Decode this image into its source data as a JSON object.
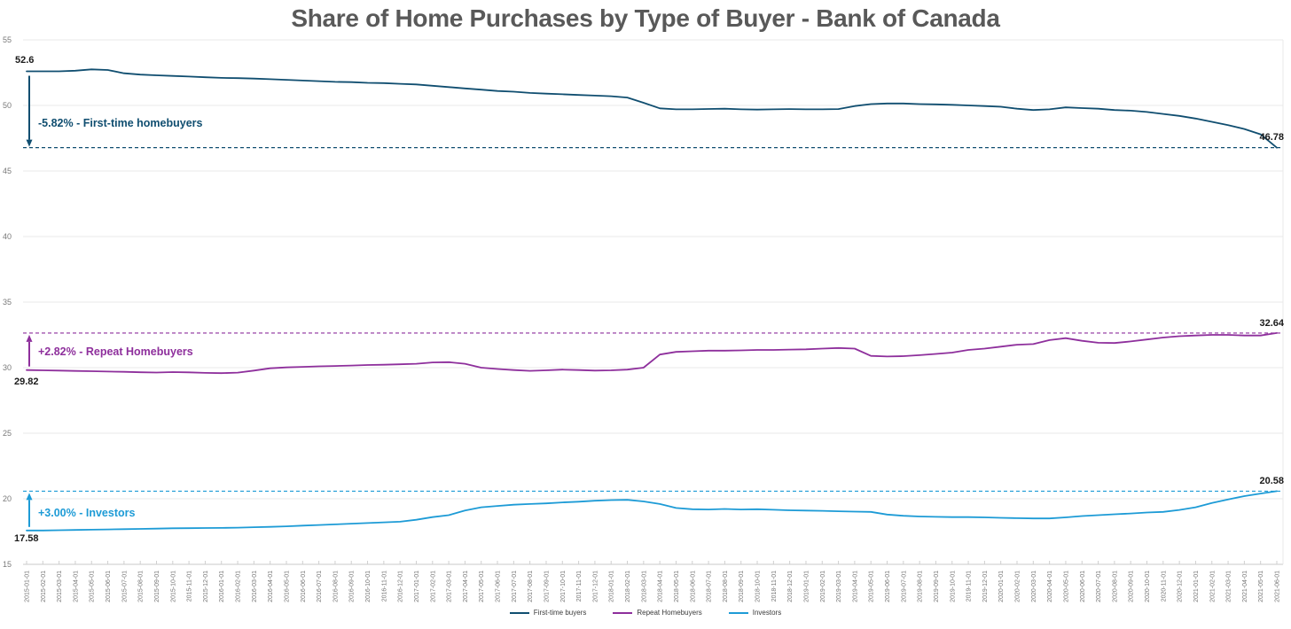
{
  "title": "Share of Home Purchases by Type of Buyer - Bank of Canada",
  "colors": {
    "title_text": "#595959",
    "grid": "#e9e9e9",
    "axis_line": "#c9c9c9",
    "tick_label": "#7a7a7a",
    "value_label": "#1a1a1a",
    "background": "#ffffff",
    "first_time_buyers": "#104e70",
    "repeat_homebuyers": "#8e2f9c",
    "investors": "#1d9bd6"
  },
  "chart_data": {
    "type": "line",
    "title": "Share of Home Purchases by Type of Buyer - Bank of Canada",
    "xlabel": "",
    "ylabel": "",
    "ylim": [
      15,
      55
    ],
    "yticks": [
      15,
      20,
      25,
      30,
      35,
      40,
      45,
      50,
      55
    ],
    "grid": true,
    "legend_position": "bottom",
    "x": [
      "2015-01-01",
      "2015-02-01",
      "2015-03-01",
      "2015-04-01",
      "2015-05-01",
      "2015-06-01",
      "2015-07-01",
      "2015-08-01",
      "2015-09-01",
      "2015-10-01",
      "2015-11-01",
      "2015-12-01",
      "2016-01-01",
      "2016-02-01",
      "2016-03-01",
      "2016-04-01",
      "2016-05-01",
      "2016-06-01",
      "2016-07-01",
      "2016-08-01",
      "2016-09-01",
      "2016-10-01",
      "2016-11-01",
      "2016-12-01",
      "2017-01-01",
      "2017-02-01",
      "2017-03-01",
      "2017-04-01",
      "2017-05-01",
      "2017-06-01",
      "2017-07-01",
      "2017-08-01",
      "2017-09-01",
      "2017-10-01",
      "2017-11-01",
      "2017-12-01",
      "2018-01-01",
      "2018-02-01",
      "2018-03-01",
      "2018-04-01",
      "2018-05-01",
      "2018-06-01",
      "2018-07-01",
      "2018-08-01",
      "2018-09-01",
      "2018-10-01",
      "2018-11-01",
      "2018-12-01",
      "2019-01-01",
      "2019-02-01",
      "2019-03-01",
      "2019-04-01",
      "2019-05-01",
      "2019-06-01",
      "2019-07-01",
      "2019-08-01",
      "2019-09-01",
      "2019-10-01",
      "2019-11-01",
      "2019-12-01",
      "2020-01-01",
      "2020-02-01",
      "2020-03-01",
      "2020-04-01",
      "2020-05-01",
      "2020-06-01",
      "2020-07-01",
      "2020-08-01",
      "2020-09-01",
      "2020-10-01",
      "2020-11-01",
      "2020-12-01",
      "2021-01-01",
      "2021-02-01",
      "2021-03-01",
      "2021-04-01",
      "2021-05-01",
      "2021-06-01"
    ],
    "series": [
      {
        "name": "First-time buyers",
        "color": "#104e70",
        "annotation": "-5.82% - First-time homebuyers",
        "start_label": "52.6",
        "end_label": "46.78",
        "ref_value": 46.78,
        "arrow_direction": "down",
        "values": [
          52.6,
          52.6,
          52.6,
          52.65,
          52.75,
          52.7,
          52.45,
          52.35,
          52.3,
          52.25,
          52.2,
          52.15,
          52.1,
          52.08,
          52.05,
          52.0,
          51.95,
          51.9,
          51.85,
          51.8,
          51.78,
          51.72,
          51.7,
          51.65,
          51.6,
          51.5,
          51.4,
          51.3,
          51.2,
          51.1,
          51.05,
          50.95,
          50.9,
          50.85,
          50.8,
          50.75,
          50.7,
          50.6,
          50.2,
          49.78,
          49.7,
          49.7,
          49.73,
          49.75,
          49.7,
          49.68,
          49.7,
          49.72,
          49.7,
          49.7,
          49.72,
          49.95,
          50.1,
          50.15,
          50.15,
          50.1,
          50.08,
          50.05,
          50.0,
          49.95,
          49.9,
          49.75,
          49.65,
          49.7,
          49.85,
          49.8,
          49.75,
          49.65,
          49.6,
          49.5,
          49.35,
          49.2,
          49.0,
          48.75,
          48.5,
          48.2,
          47.8,
          46.78
        ]
      },
      {
        "name": "Repeat Homebuyers",
        "color": "#8e2f9c",
        "annotation": "+2.82% - Repeat Homebuyers",
        "start_label": "29.82",
        "end_label": "32.64",
        "ref_value": 32.64,
        "arrow_direction": "up",
        "values": [
          29.82,
          29.8,
          29.78,
          29.75,
          29.73,
          29.7,
          29.68,
          29.65,
          29.63,
          29.66,
          29.64,
          29.6,
          29.58,
          29.62,
          29.78,
          29.95,
          30.02,
          30.06,
          30.1,
          30.13,
          30.16,
          30.2,
          30.22,
          30.26,
          30.3,
          30.4,
          30.42,
          30.3,
          30.0,
          29.9,
          29.82,
          29.76,
          29.8,
          29.85,
          29.82,
          29.78,
          29.8,
          29.85,
          30.0,
          31.0,
          31.2,
          31.25,
          31.3,
          31.3,
          31.32,
          31.35,
          31.35,
          31.38,
          31.4,
          31.45,
          31.5,
          31.45,
          30.9,
          30.85,
          30.88,
          30.95,
          31.05,
          31.15,
          31.35,
          31.45,
          31.6,
          31.75,
          31.8,
          32.1,
          32.25,
          32.05,
          31.9,
          31.88,
          32.0,
          32.15,
          32.3,
          32.4,
          32.45,
          32.5,
          32.5,
          32.45,
          32.45,
          32.64
        ]
      },
      {
        "name": "Investors",
        "color": "#1d9bd6",
        "annotation": "+3.00% - Investors",
        "start_label": "17.58",
        "end_label": "20.58",
        "ref_value": 20.58,
        "arrow_direction": "up",
        "values": [
          17.58,
          17.58,
          17.6,
          17.62,
          17.64,
          17.66,
          17.68,
          17.7,
          17.72,
          17.75,
          17.76,
          17.77,
          17.78,
          17.8,
          17.83,
          17.86,
          17.9,
          17.95,
          18.0,
          18.05,
          18.1,
          18.15,
          18.2,
          18.25,
          18.4,
          18.6,
          18.75,
          19.1,
          19.35,
          19.45,
          19.55,
          19.6,
          19.65,
          19.72,
          19.78,
          19.85,
          19.9,
          19.92,
          19.8,
          19.6,
          19.3,
          19.2,
          19.18,
          19.22,
          19.18,
          19.2,
          19.16,
          19.12,
          19.1,
          19.08,
          19.05,
          19.02,
          19.0,
          18.8,
          18.7,
          18.65,
          18.62,
          18.6,
          18.6,
          18.58,
          18.55,
          18.52,
          18.5,
          18.5,
          18.58,
          18.68,
          18.75,
          18.82,
          18.88,
          18.95,
          19.0,
          19.15,
          19.35,
          19.68,
          19.95,
          20.2,
          20.4,
          20.58
        ]
      }
    ]
  }
}
